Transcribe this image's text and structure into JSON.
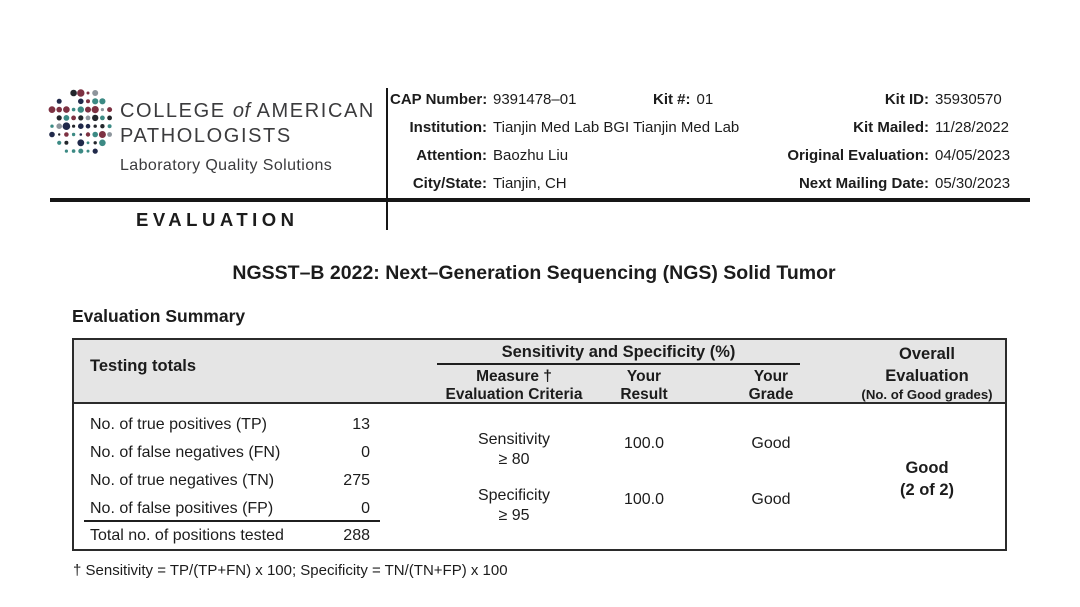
{
  "colors": {
    "header_bg": "#e5e5e5",
    "border": "#2b2b2b",
    "text": "#1c1c1c",
    "logo_text": "#3b3b3d",
    "line": "#161616"
  },
  "logo": {
    "line1_a": "COLLEGE",
    "line1_of": "of",
    "line1_b": "AMERICAN",
    "line2": "PATHOLOGISTS",
    "tagline": "Laboratory Quality Solutions",
    "section": "EVALUATION"
  },
  "info": {
    "left_rows": [
      {
        "label": "CAP Number:",
        "value": "9391478–01"
      },
      {
        "label": "Institution:",
        "value": "Tianjin Med Lab BGI Tianjin Med Lab"
      },
      {
        "label": "Attention:",
        "value": "Baozhu Liu"
      },
      {
        "label": "City/State:",
        "value": "Tianjin, CH"
      }
    ],
    "kit": {
      "label": "Kit #:",
      "value": "01"
    },
    "right_rows": [
      {
        "label": "Kit ID:",
        "value": "35930570"
      },
      {
        "label": "Kit Mailed:",
        "value": "11/28/2022"
      },
      {
        "label": "Original Evaluation:",
        "value": "04/05/2023"
      },
      {
        "label": "Next Mailing Date:",
        "value": "05/30/2023"
      }
    ]
  },
  "title": "NGSST–B 2022: Next–Generation Sequencing (NGS) Solid Tumor",
  "summary_heading": "Evaluation Summary",
  "table": {
    "testing_header": "Testing totals",
    "group_header": "Sensitivity and Specificity (%)",
    "measure_header_line1": "Measure †",
    "measure_header_line2": "Evaluation Criteria",
    "result_header_line1": "Your",
    "result_header_line2": "Result",
    "grade_header_line1": "Your",
    "grade_header_line2": "Grade",
    "overall_header_line1": "Overall",
    "overall_header_line2": "Evaluation",
    "overall_header_line3": "(No. of Good grades)",
    "testing_rows": [
      {
        "label": "No. of true positives (TP)",
        "value": "13"
      },
      {
        "label": "No. of false negatives (FN)",
        "value": "0"
      },
      {
        "label": "No. of true negatives (TN)",
        "value": "275"
      },
      {
        "label": "No. of false positives (FP)",
        "value": "0"
      }
    ],
    "testing_total": {
      "label": "Total no. of positions tested",
      "value": "288"
    },
    "measure_rows": [
      {
        "measure": "Sensitivity",
        "criteria": "≥ 80",
        "result": "100.0",
        "grade": "Good"
      },
      {
        "measure": "Specificity",
        "criteria": "≥ 95",
        "result": "100.0",
        "grade": "Good"
      }
    ],
    "overall_line1": "Good",
    "overall_line2": "(2 of 2)"
  },
  "footnote": "† Sensitivity = TP/(TP+FN) x 100; Specificity = TN/(TN+FP) x 100"
}
